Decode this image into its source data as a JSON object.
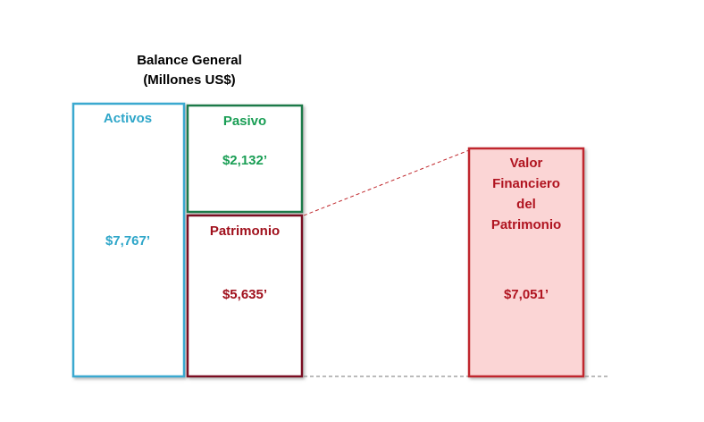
{
  "title": {
    "line1": "Balance General",
    "line2": "(Millones US$)"
  },
  "activos": {
    "label": "Activos",
    "value": "$7,767’"
  },
  "pasivo": {
    "label": "Pasivo",
    "value": "$2,132’"
  },
  "patrimonio": {
    "label": "Patrimonio",
    "value": "$5,635’"
  },
  "valor": {
    "label": [
      "Valor",
      "Financiero",
      "del",
      "Patrimonio"
    ],
    "value": "$7,051’"
  }
}
